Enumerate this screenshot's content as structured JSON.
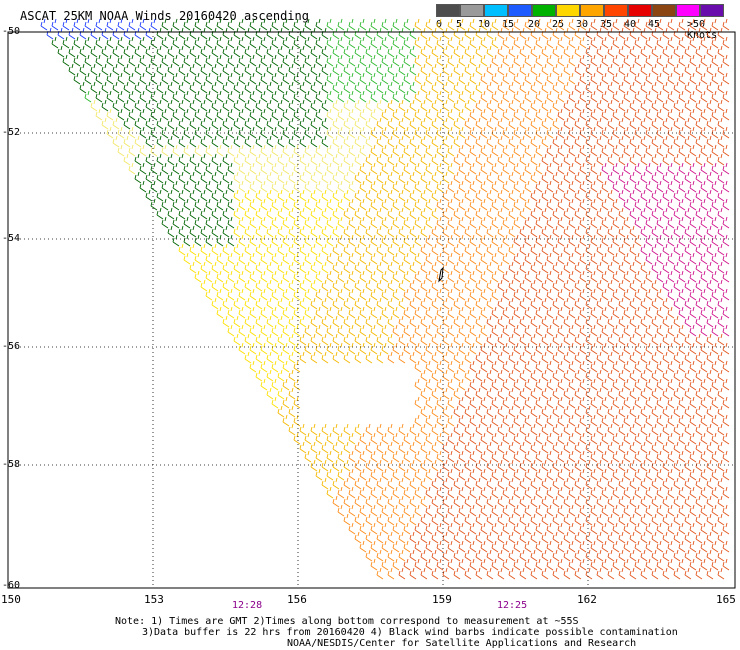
{
  "title": "ASCAT 25KM NOAA Winds 20160420 ascending",
  "legend": {
    "unit": ">50 Knots",
    "bins": [
      {
        "label": "0",
        "color": "#4d4d4d"
      },
      {
        "label": "5",
        "color": "#9a9a9a"
      },
      {
        "label": "10",
        "color": "#00bfff"
      },
      {
        "label": "15",
        "color": "#1e5bff"
      },
      {
        "label": "20",
        "color": "#00b200"
      },
      {
        "label": "25",
        "color": "#ffd700"
      },
      {
        "label": "30",
        "color": "#ffa500"
      },
      {
        "label": "35",
        "color": "#ff4500"
      },
      {
        "label": "40",
        "color": "#e60000"
      },
      {
        "label": "45",
        "color": "#8b4513"
      },
      {
        "label": "",
        "color": "#ff00ff"
      },
      {
        "label": "",
        "color": "#6a0dad"
      }
    ]
  },
  "lat_labels": [
    "-50",
    "-52",
    "-54",
    "-56",
    "-58",
    "-60"
  ],
  "lon_labels": [
    "150",
    "153",
    "156",
    "159",
    "162",
    "165"
  ],
  "pass_times": [
    "12:28",
    "12:25"
  ],
  "notes": [
    "Note: 1) Times are GMT 2)Times along bottom correspond to measurement at ~55S",
    "3)Data buffer is 22 hrs from 20160420 4) Black wind barbs indicate possible contamination",
    "NOAA/NESDIS/Center for Satellite Applications and Research"
  ]
}
